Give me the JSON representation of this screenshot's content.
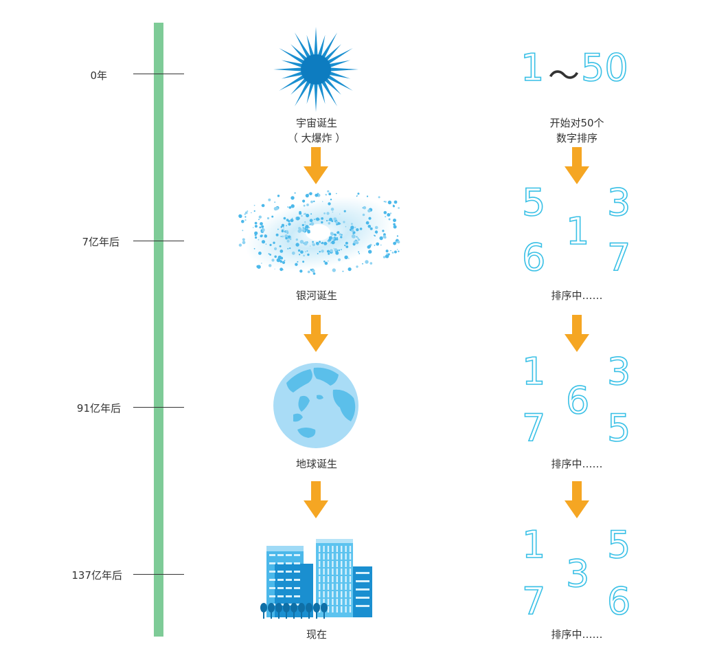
{
  "timeline": {
    "ticks": [
      "0年",
      "7亿年后",
      "91亿年后",
      "137亿年后"
    ]
  },
  "universe": {
    "captions": [
      "宇宙诞生\n（ 大爆炸 ）",
      "银河诞生",
      "地球诞生",
      "现在"
    ],
    "icons": [
      "big-bang-starburst",
      "galaxy-spiral",
      "earth-globe",
      "city-buildings"
    ]
  },
  "sorting": {
    "range": {
      "from": "1",
      "tilde": "～",
      "to": "50"
    },
    "intro_caption": "开始对50个\n数字排序",
    "step_caption": "排序中……",
    "steps": [
      [
        "5",
        "3",
        "1",
        "6",
        "7"
      ],
      [
        "1",
        "3",
        "6",
        "7",
        "5"
      ],
      [
        "1",
        "5",
        "3",
        "7",
        "6"
      ]
    ]
  },
  "colors": {
    "timeline": "#7ecb97",
    "arrow": "#f5a623",
    "number_outline": "#39c0e6",
    "icon_blue": "#1a8fd0"
  }
}
